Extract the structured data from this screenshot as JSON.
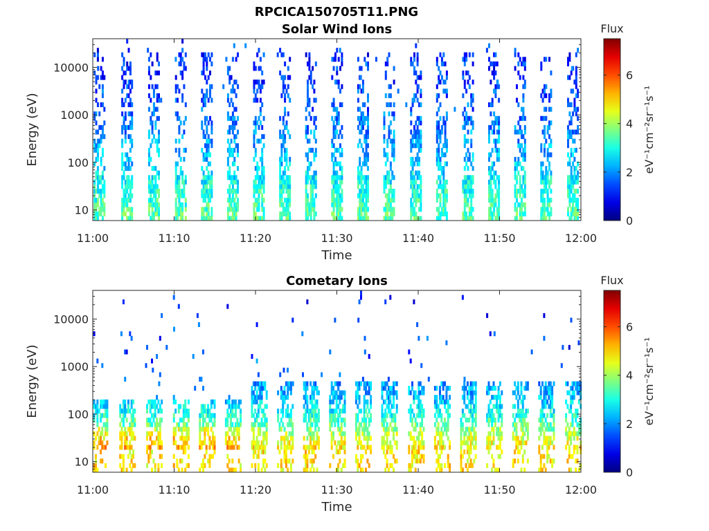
{
  "figure_title": "RPCICA150705T11.PNG",
  "chart_data": [
    {
      "type": "heatmap",
      "title": "Solar Wind Ions",
      "xlabel": "Time",
      "ylabel": "Energy (eV)",
      "x_ticks": [
        "11:00",
        "11:10",
        "11:20",
        "11:30",
        "11:40",
        "11:50",
        "12:00"
      ],
      "xlim": [
        "11:00",
        "12:00"
      ],
      "y_scale": "log",
      "y_ticks": [
        10,
        100,
        1000,
        10000
      ],
      "ylim": [
        6,
        40000
      ],
      "colorbar": {
        "title": "Flux",
        "unit": "eV⁻¹cm⁻²sr⁻¹s⁻¹",
        "ticks": [
          0,
          2,
          4,
          6
        ],
        "range": [
          0,
          7.5
        ],
        "colormap": "jet"
      },
      "bursts_minutes": [
        0.8,
        4.2,
        7.5,
        10.8,
        14.0,
        17.2,
        20.4,
        23.6,
        26.8,
        30.0,
        33.2,
        36.4,
        39.7,
        42.9,
        46.1,
        49.3,
        52.5,
        55.7,
        59.0
      ],
      "intensity_by_energy": [
        {
          "energy_eV": 8,
          "flux": 3.4
        },
        {
          "energy_eV": 30,
          "flux": 3.0
        },
        {
          "energy_eV": 100,
          "flux": 2.4
        },
        {
          "energy_eV": 1000,
          "flux": 1.7
        },
        {
          "energy_eV": 10000,
          "flux": 1.2
        }
      ],
      "grid": false
    },
    {
      "type": "heatmap",
      "title": "Cometary Ions",
      "xlabel": "Time",
      "ylabel": "Energy (eV)",
      "x_ticks": [
        "11:00",
        "11:10",
        "11:20",
        "11:30",
        "11:40",
        "11:50",
        "12:00"
      ],
      "xlim": [
        "11:00",
        "12:00"
      ],
      "y_scale": "log",
      "y_ticks": [
        10,
        100,
        1000,
        10000
      ],
      "ylim": [
        6,
        40000
      ],
      "colorbar": {
        "title": "Flux",
        "unit": "eV⁻¹cm⁻²sr⁻¹s⁻¹",
        "ticks": [
          0,
          2,
          4,
          6
        ],
        "range": [
          0,
          7.5
        ],
        "colormap": "jet"
      },
      "bursts_minutes": [
        0.8,
        4.2,
        7.5,
        10.8,
        14.0,
        17.2,
        20.4,
        23.6,
        26.8,
        30.0,
        33.2,
        36.4,
        39.7,
        42.9,
        46.1,
        49.3,
        52.5,
        55.7,
        59.0
      ],
      "intensity_by_energy": [
        {
          "energy_eV": 20,
          "flux": 4.8
        },
        {
          "energy_eV": 35,
          "flux": 4.3
        },
        {
          "energy_eV": 70,
          "flux": 3.3
        },
        {
          "energy_eV": 200,
          "flux": 2.4
        },
        {
          "energy_eV": 3000,
          "flux": 1.2
        }
      ],
      "grid": false
    }
  ]
}
